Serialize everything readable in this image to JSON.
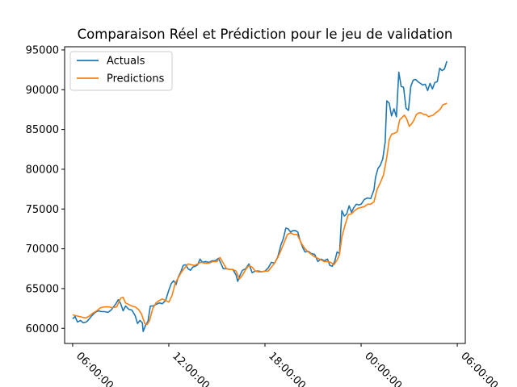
{
  "chart_data": {
    "type": "line",
    "title": "Comparaison Réel et Prédiction pour le jeu de validation",
    "xlabel": "",
    "ylabel": "",
    "xlim": [
      -1,
      49
    ],
    "ylim": [
      58100,
      95400
    ],
    "x_ticks": [
      {
        "x": 0,
        "label": "06:00:00"
      },
      {
        "x": 12,
        "label": "12:00:00"
      },
      {
        "x": 24,
        "label": "18:00:00"
      },
      {
        "x": 36,
        "label": "00:00:00"
      },
      {
        "x": 48,
        "label": "06:00:00"
      }
    ],
    "y_ticks": [
      60000,
      65000,
      70000,
      75000,
      80000,
      85000,
      90000,
      95000
    ],
    "y_tick_labels": [
      "60000",
      "65000",
      "70000",
      "75000",
      "80000",
      "85000",
      "90000",
      "95000"
    ],
    "grid": false,
    "legend_position": "upper-left",
    "series": [
      {
        "name": "Actuals",
        "color": "#1f77b4",
        "points": [
          [
            0,
            61200
          ],
          [
            0.3,
            61500
          ],
          [
            0.6,
            60800
          ],
          [
            1,
            61000
          ],
          [
            1.3,
            60700
          ],
          [
            1.7,
            60800
          ],
          [
            2,
            61100
          ],
          [
            2.4,
            61600
          ],
          [
            2.8,
            62000
          ],
          [
            3.2,
            62200
          ],
          [
            3.6,
            62100
          ],
          [
            4,
            62100
          ],
          [
            4.4,
            62000
          ],
          [
            4.8,
            62300
          ],
          [
            5.1,
            62700
          ],
          [
            5.4,
            63100
          ],
          [
            5.7,
            63600
          ],
          [
            6,
            63100
          ],
          [
            6.3,
            62200
          ],
          [
            6.6,
            62800
          ],
          [
            7,
            62400
          ],
          [
            7.4,
            62300
          ],
          [
            7.8,
            61600
          ],
          [
            8.1,
            60600
          ],
          [
            8.4,
            61000
          ],
          [
            8.7,
            60700
          ],
          [
            8.8,
            59600
          ],
          [
            9.1,
            60400
          ],
          [
            9.4,
            60900
          ],
          [
            9.7,
            62800
          ],
          [
            10,
            62800
          ],
          [
            10.4,
            63000
          ],
          [
            10.8,
            63200
          ],
          [
            11.2,
            63100
          ],
          [
            11.6,
            63500
          ],
          [
            12,
            64800
          ],
          [
            12.3,
            65600
          ],
          [
            12.6,
            66000
          ],
          [
            12.9,
            65500
          ],
          [
            13.2,
            66500
          ],
          [
            13.5,
            67100
          ],
          [
            13.8,
            67900
          ],
          [
            14.1,
            68000
          ],
          [
            14.4,
            67500
          ],
          [
            14.7,
            67300
          ],
          [
            15,
            67700
          ],
          [
            15.3,
            67800
          ],
          [
            15.6,
            68000
          ],
          [
            15.9,
            68700
          ],
          [
            16.2,
            68300
          ],
          [
            16.6,
            68400
          ],
          [
            17,
            68300
          ],
          [
            17.4,
            68500
          ],
          [
            17.8,
            68500
          ],
          [
            18.2,
            68800
          ],
          [
            18.5,
            68200
          ],
          [
            18.8,
            67500
          ],
          [
            19.2,
            67500
          ],
          [
            19.6,
            67400
          ],
          [
            20,
            67400
          ],
          [
            20.4,
            66700
          ],
          [
            20.6,
            65900
          ],
          [
            20.9,
            66700
          ],
          [
            21.2,
            67300
          ],
          [
            21.6,
            67500
          ],
          [
            22,
            68100
          ],
          [
            22.4,
            67000
          ],
          [
            22.8,
            67200
          ],
          [
            23.2,
            67200
          ],
          [
            23.6,
            67100
          ],
          [
            24,
            67200
          ],
          [
            24.4,
            67600
          ],
          [
            24.8,
            68300
          ],
          [
            25.2,
            68200
          ],
          [
            25.6,
            69000
          ],
          [
            26,
            70500
          ],
          [
            26.3,
            71300
          ],
          [
            26.6,
            72600
          ],
          [
            26.9,
            72500
          ],
          [
            27.2,
            72100
          ],
          [
            27.5,
            72300
          ],
          [
            27.8,
            72300
          ],
          [
            28.1,
            72100
          ],
          [
            28.4,
            71000
          ],
          [
            28.7,
            70200
          ],
          [
            29,
            69600
          ],
          [
            29.4,
            69700
          ],
          [
            29.8,
            69400
          ],
          [
            30.2,
            69300
          ],
          [
            30.6,
            68400
          ],
          [
            31,
            68700
          ],
          [
            31.4,
            68500
          ],
          [
            31.8,
            68700
          ],
          [
            32.1,
            67900
          ],
          [
            32.4,
            67800
          ],
          [
            32.7,
            68400
          ],
          [
            33,
            69600
          ],
          [
            33.3,
            69400
          ],
          [
            33.6,
            74800
          ],
          [
            33.9,
            74100
          ],
          [
            34.2,
            74400
          ],
          [
            34.5,
            75400
          ],
          [
            34.8,
            74600
          ],
          [
            35.1,
            75200
          ],
          [
            35.4,
            75600
          ],
          [
            35.7,
            75500
          ],
          [
            36,
            75600
          ],
          [
            36.4,
            76200
          ],
          [
            36.8,
            76400
          ],
          [
            37.2,
            76300
          ],
          [
            37.6,
            77400
          ],
          [
            37.8,
            79000
          ],
          [
            38.1,
            80100
          ],
          [
            38.4,
            80500
          ],
          [
            38.7,
            81300
          ],
          [
            39,
            83400
          ],
          [
            39.2,
            88600
          ],
          [
            39.5,
            88300
          ],
          [
            39.8,
            86700
          ],
          [
            40.1,
            87600
          ],
          [
            40.4,
            86600
          ],
          [
            40.7,
            92200
          ],
          [
            41,
            90400
          ],
          [
            41.3,
            90300
          ],
          [
            41.6,
            87700
          ],
          [
            41.9,
            87400
          ],
          [
            42.2,
            90400
          ],
          [
            42.5,
            91200
          ],
          [
            42.8,
            91300
          ],
          [
            43.1,
            91000
          ],
          [
            43.4,
            90800
          ],
          [
            43.7,
            90600
          ],
          [
            44,
            90700
          ],
          [
            44.3,
            89900
          ],
          [
            44.6,
            90800
          ],
          [
            44.9,
            90100
          ],
          [
            45.2,
            90900
          ],
          [
            45.5,
            91000
          ],
          [
            45.8,
            92700
          ],
          [
            46.1,
            92400
          ],
          [
            46.4,
            92600
          ],
          [
            46.7,
            93600
          ]
        ]
      },
      {
        "name": "Predictions",
        "color": "#ff7f0e",
        "points": [
          [
            0,
            61700
          ],
          [
            0.4,
            61600
          ],
          [
            0.8,
            61500
          ],
          [
            1.2,
            61400
          ],
          [
            1.6,
            61300
          ],
          [
            2,
            61500
          ],
          [
            2.5,
            61900
          ],
          [
            3,
            62200
          ],
          [
            3.5,
            62600
          ],
          [
            4,
            62700
          ],
          [
            4.5,
            62700
          ],
          [
            5,
            62600
          ],
          [
            5.5,
            62700
          ],
          [
            6,
            63800
          ],
          [
            6.3,
            63900
          ],
          [
            6.6,
            63200
          ],
          [
            7,
            63000
          ],
          [
            7.4,
            62800
          ],
          [
            7.8,
            62700
          ],
          [
            8.2,
            62400
          ],
          [
            8.6,
            61800
          ],
          [
            9,
            60600
          ],
          [
            9.3,
            60500
          ],
          [
            9.6,
            61000
          ],
          [
            10,
            62500
          ],
          [
            10.4,
            63200
          ],
          [
            10.8,
            63500
          ],
          [
            11.2,
            63700
          ],
          [
            11.6,
            63500
          ],
          [
            12,
            63300
          ],
          [
            12.4,
            64100
          ],
          [
            12.8,
            65700
          ],
          [
            13.2,
            66400
          ],
          [
            13.6,
            67100
          ],
          [
            14,
            67600
          ],
          [
            14.4,
            68100
          ],
          [
            14.8,
            68000
          ],
          [
            15.2,
            67900
          ],
          [
            15.6,
            68100
          ],
          [
            16,
            68300
          ],
          [
            16.5,
            68200
          ],
          [
            17,
            68200
          ],
          [
            17.5,
            68400
          ],
          [
            18,
            68400
          ],
          [
            18.4,
            68900
          ],
          [
            18.8,
            68200
          ],
          [
            19.2,
            67500
          ],
          [
            19.6,
            67400
          ],
          [
            20,
            67400
          ],
          [
            20.4,
            67200
          ],
          [
            20.8,
            66200
          ],
          [
            21.2,
            66700
          ],
          [
            21.6,
            67400
          ],
          [
            22,
            67900
          ],
          [
            22.4,
            67700
          ],
          [
            22.8,
            67200
          ],
          [
            23.2,
            67100
          ],
          [
            23.6,
            67100
          ],
          [
            24,
            67200
          ],
          [
            24.4,
            67200
          ],
          [
            24.8,
            67700
          ],
          [
            25.2,
            68200
          ],
          [
            25.6,
            68900
          ],
          [
            26,
            69800
          ],
          [
            26.4,
            70800
          ],
          [
            26.8,
            71800
          ],
          [
            27.2,
            72000
          ],
          [
            27.6,
            71800
          ],
          [
            28,
            71800
          ],
          [
            28.3,
            71200
          ],
          [
            28.6,
            70600
          ],
          [
            29,
            70000
          ],
          [
            29.4,
            69600
          ],
          [
            29.8,
            69300
          ],
          [
            30.2,
            69000
          ],
          [
            30.6,
            68800
          ],
          [
            31,
            68600
          ],
          [
            31.4,
            68400
          ],
          [
            31.8,
            68400
          ],
          [
            32.2,
            68300
          ],
          [
            32.6,
            68000
          ],
          [
            33,
            68600
          ],
          [
            33.3,
            69300
          ],
          [
            33.6,
            71500
          ],
          [
            34,
            73000
          ],
          [
            34.4,
            74300
          ],
          [
            34.8,
            74400
          ],
          [
            35.2,
            74800
          ],
          [
            35.6,
            75100
          ],
          [
            36,
            75200
          ],
          [
            36.4,
            75300
          ],
          [
            36.8,
            75600
          ],
          [
            37.2,
            75600
          ],
          [
            37.6,
            75900
          ],
          [
            38,
            77500
          ],
          [
            38.4,
            78300
          ],
          [
            38.8,
            79300
          ],
          [
            39.2,
            81500
          ],
          [
            39.5,
            83700
          ],
          [
            39.8,
            84400
          ],
          [
            40.1,
            84500
          ],
          [
            40.5,
            84700
          ],
          [
            40.8,
            86200
          ],
          [
            41.1,
            86500
          ],
          [
            41.4,
            86800
          ],
          [
            41.7,
            86300
          ],
          [
            42,
            85400
          ],
          [
            42.3,
            85700
          ],
          [
            42.6,
            86200
          ],
          [
            42.9,
            86900
          ],
          [
            43.2,
            87100
          ],
          [
            43.5,
            87100
          ],
          [
            43.8,
            86900
          ],
          [
            44.1,
            86900
          ],
          [
            44.4,
            86600
          ],
          [
            44.7,
            86700
          ],
          [
            45,
            86800
          ],
          [
            45.3,
            87100
          ],
          [
            45.6,
            87300
          ],
          [
            45.9,
            87600
          ],
          [
            46.2,
            88100
          ],
          [
            46.5,
            88200
          ],
          [
            46.7,
            88300
          ]
        ]
      }
    ]
  }
}
